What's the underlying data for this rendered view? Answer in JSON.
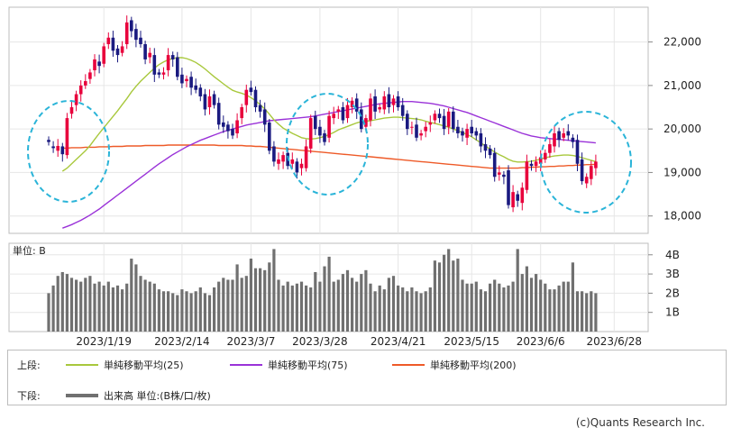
{
  "chart_data": {
    "type": "candlestick",
    "price_axis": {
      "ticks": [
        18000,
        19000,
        20000,
        21000,
        22000
      ],
      "labels": [
        "18,000",
        "19,000",
        "20,000",
        "21,000",
        "22,000"
      ],
      "ylim": [
        17600,
        22800
      ]
    },
    "volume_axis": {
      "unit_label": "単位: B",
      "ticks": [
        1,
        2,
        3,
        4
      ],
      "labels": [
        "1B",
        "2B",
        "3B",
        "4B"
      ],
      "ylim": [
        0,
        4.6
      ]
    },
    "x_labels": [
      "2023/1/19",
      "2023/2/14",
      "2023/3/7",
      "2023/3/28",
      "2023/4/21",
      "2023/5/15",
      "2023/6/6",
      "2023/6/28"
    ],
    "x_label_index": [
      12,
      29,
      44,
      59,
      76,
      92,
      107,
      123
    ],
    "legend": {
      "upper_label": "上段:",
      "lower_label": "下段:",
      "ma25": "単純移動平均(25)",
      "ma75": "単純移動平均(75)",
      "ma200": "単純移動平均(200)",
      "volume": "出来高 単位:(B株/口/枚)"
    },
    "colors": {
      "up": "#e8003c",
      "down": "#1a1a80",
      "ma25": "#a8c83c",
      "ma75": "#9a32d8",
      "ma200": "#ee5a28",
      "volume": "#707070",
      "circle": "#2ab4d8"
    },
    "closes": [
      19700,
      19560,
      19610,
      19420,
      20250,
      20500,
      20800,
      21000,
      21100,
      21300,
      21600,
      21450,
      21900,
      22100,
      21800,
      21700,
      21900,
      22450,
      22250,
      22050,
      21950,
      21600,
      21750,
      21250,
      21250,
      21300,
      21700,
      21600,
      21200,
      21050,
      21150,
      20950,
      20900,
      20750,
      20450,
      20750,
      20550,
      20100,
      20050,
      19950,
      19850,
      20200,
      20500,
      20900,
      20850,
      20500,
      20400,
      20100,
      19500,
      19250,
      19300,
      19400,
      19150,
      19300,
      19000,
      19200,
      19600,
      20250,
      20000,
      19850,
      19700,
      20300,
      20350,
      20450,
      20200,
      20550,
      20650,
      20400,
      20000,
      20250,
      20700,
      20400,
      20500,
      20750,
      20500,
      20700,
      20500,
      20300,
      20000,
      20050,
      19800,
      19900,
      20050,
      20150,
      20350,
      20250,
      20000,
      20400,
      20000,
      19900,
      19850,
      20000,
      19900,
      19850,
      19600,
      19500,
      19400,
      18900,
      19000,
      18900,
      18250,
      18550,
      18350,
      18650,
      19250,
      19150,
      19250,
      19350,
      19450,
      19650,
      19900,
      19750,
      19900,
      19850,
      19700,
      19200,
      18800,
      18900,
      19150,
      19250
    ],
    "opens": [
      19750,
      19600,
      19500,
      19600,
      19400,
      20350,
      20550,
      20800,
      21000,
      21150,
      21350,
      21550,
      21500,
      21950,
      22100,
      21850,
      21750,
      21950,
      22500,
      22300,
      22100,
      21950,
      21650,
      21700,
      21300,
      21250,
      21350,
      21700,
      21650,
      21250,
      21100,
      21200,
      21000,
      20950,
      20800,
      20500,
      20800,
      20600,
      20150,
      20100,
      20000,
      19900,
      20250,
      20550,
      20950,
      20900,
      20550,
      20450,
      20150,
      19600,
      19200,
      19250,
      19450,
      19200,
      19250,
      19100,
      19100,
      19550,
      20300,
      20050,
      19900,
      19800,
      20250,
      20400,
      20500,
      20250,
      20500,
      20700,
      20450,
      20050,
      20200,
      20750,
      20450,
      20450,
      20800,
      20550,
      20750,
      20550,
      20350,
      20050,
      20100,
      19850,
      19950,
      20100,
      20200,
      20350,
      20300,
      20050,
      20400,
      20050,
      19950,
      19800,
      20050,
      19950,
      19900,
      19650,
      19550,
      19450,
      18950,
      18950,
      19050,
      18200,
      18500,
      18300,
      18600,
      19200,
      19150,
      19200,
      19300,
      19450,
      19600,
      19950,
      19800,
      19950,
      19800,
      19750,
      19300,
      18750,
      18850,
      19100
    ],
    "volumes": [
      2.0,
      2.4,
      2.9,
      3.1,
      3.0,
      2.8,
      2.7,
      2.6,
      2.8,
      2.9,
      2.5,
      2.6,
      2.4,
      2.6,
      2.3,
      2.4,
      2.2,
      2.5,
      3.8,
      3.5,
      2.9,
      2.7,
      2.6,
      2.5,
      2.2,
      2.1,
      2.1,
      2.0,
      1.9,
      2.2,
      2.1,
      2.0,
      2.1,
      2.3,
      2.0,
      1.9,
      2.3,
      2.6,
      2.8,
      2.7,
      2.7,
      3.5,
      2.8,
      2.9,
      3.8,
      3.3,
      3.3,
      3.2,
      3.6,
      4.3,
      2.7,
      2.4,
      2.6,
      2.4,
      2.5,
      2.6,
      2.4,
      2.3,
      3.1,
      2.6,
      3.4,
      3.9,
      2.6,
      2.7,
      3.0,
      3.2,
      2.8,
      2.6,
      3.0,
      3.2,
      2.5,
      2.1,
      2.4,
      2.2,
      2.8,
      2.9,
      2.4,
      2.3,
      2.1,
      2.3,
      2.1,
      2.0,
      2.1,
      2.3,
      3.7,
      3.6,
      4.0,
      4.3,
      3.7,
      3.8,
      2.7,
      2.5,
      2.5,
      2.6,
      2.2,
      2.1,
      2.5,
      2.7,
      2.5,
      2.3,
      2.4,
      2.6,
      4.3,
      3.0,
      3.4,
      2.8,
      3.0,
      2.7,
      2.5,
      2.2,
      2.2,
      2.4,
      2.6,
      2.6,
      3.6,
      2.1,
      2.1,
      2.0,
      2.1,
      2.0
    ],
    "ma25": [
      null,
      null,
      null,
      19030,
      19100,
      19200,
      19300,
      19400,
      19500,
      19620,
      19760,
      19900,
      20030,
      20160,
      20290,
      20420,
      20560,
      20700,
      20850,
      20980,
      21100,
      21200,
      21300,
      21400,
      21480,
      21540,
      21590,
      21620,
      21640,
      21640,
      21620,
      21580,
      21530,
      21460,
      21380,
      21290,
      21200,
      21120,
      21040,
      20960,
      20890,
      20850,
      20820,
      20780,
      20720,
      20650,
      20560,
      20460,
      20340,
      20210,
      20110,
      20020,
      19960,
      19900,
      19850,
      19800,
      19780,
      19770,
      19780,
      19800,
      19830,
      19870,
      19920,
      19980,
      20020,
      20060,
      20100,
      20140,
      20170,
      20180,
      20190,
      20210,
      20230,
      20250,
      20260,
      20270,
      20270,
      20260,
      20250,
      20240,
      20230,
      20210,
      20180,
      20150,
      20130,
      20100,
      20070,
      20040,
      20000,
      19960,
      19920,
      19870,
      19820,
      19750,
      19680,
      19610,
      19540,
      19470,
      19410,
      19360,
      19300,
      19260,
      19240,
      19240,
      19250,
      19260,
      19280,
      19310,
      19340,
      19360,
      19380,
      19390,
      19400,
      19400,
      19390,
      19370,
      19340,
      19310,
      19280,
      19250
    ],
    "ma75": [
      null,
      null,
      null,
      17720,
      17760,
      17800,
      17850,
      17900,
      17960,
      18020,
      18090,
      18160,
      18240,
      18320,
      18400,
      18480,
      18560,
      18640,
      18720,
      18800,
      18880,
      18960,
      19040,
      19120,
      19200,
      19270,
      19340,
      19410,
      19470,
      19530,
      19590,
      19640,
      19690,
      19740,
      19780,
      19820,
      19860,
      19900,
      19940,
      19970,
      20000,
      20030,
      20060,
      20090,
      20110,
      20130,
      20150,
      20170,
      20190,
      20200,
      20210,
      20220,
      20230,
      20240,
      20250,
      20260,
      20270,
      20280,
      20300,
      20320,
      20340,
      20360,
      20380,
      20400,
      20420,
      20440,
      20460,
      20480,
      20500,
      20520,
      20540,
      20560,
      20580,
      20590,
      20600,
      20610,
      20620,
      20630,
      20630,
      20630,
      20620,
      20610,
      20600,
      20590,
      20570,
      20550,
      20530,
      20500,
      20470,
      20440,
      20410,
      20380,
      20340,
      20300,
      20260,
      20220,
      20180,
      20140,
      20100,
      20060,
      20020,
      19980,
      19940,
      19900,
      19870,
      19840,
      19820,
      19800,
      19790,
      19780,
      19770,
      19760,
      19750,
      19740,
      19730,
      19720,
      19710,
      19700,
      19690,
      19680
    ],
    "ma200": [
      null,
      null,
      null,
      19560,
      19560,
      19570,
      19570,
      19570,
      19580,
      19580,
      19580,
      19590,
      19590,
      19590,
      19600,
      19600,
      19600,
      19610,
      19610,
      19610,
      19610,
      19620,
      19620,
      19620,
      19620,
      19620,
      19630,
      19630,
      19630,
      19630,
      19630,
      19630,
      19630,
      19630,
      19630,
      19630,
      19630,
      19620,
      19620,
      19620,
      19620,
      19620,
      19620,
      19610,
      19610,
      19600,
      19600,
      19590,
      19580,
      19570,
      19560,
      19550,
      19540,
      19530,
      19520,
      19510,
      19500,
      19490,
      19480,
      19470,
      19460,
      19450,
      19440,
      19430,
      19420,
      19410,
      19400,
      19390,
      19380,
      19370,
      19360,
      19350,
      19340,
      19330,
      19320,
      19310,
      19300,
      19290,
      19280,
      19270,
      19260,
      19250,
      19240,
      19230,
      19220,
      19210,
      19200,
      19190,
      19180,
      19170,
      19160,
      19150,
      19140,
      19130,
      19120,
      19110,
      19100,
      19100,
      19100,
      19100,
      19100,
      19100,
      19100,
      19110,
      19110,
      19120,
      19120,
      19130,
      19130,
      19140,
      19140,
      19150,
      19150,
      19160,
      19160,
      19170,
      19170,
      19180,
      19180,
      19190
    ]
  },
  "credit": "(c)Quants Research Inc."
}
